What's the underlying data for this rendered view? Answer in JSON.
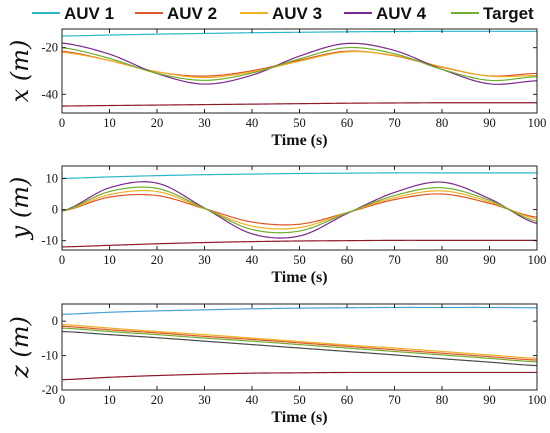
{
  "legend": [
    {
      "label": "AUV 1",
      "color": "#2ab7c9"
    },
    {
      "label": "AUV 2",
      "color": "#e0552a"
    },
    {
      "label": "AUV 3",
      "color": "#efb021"
    },
    {
      "label": "AUV 4",
      "color": "#7b2a8d"
    },
    {
      "label": "Target",
      "color": "#6fae2e"
    }
  ],
  "chart_data": [
    {
      "type": "line",
      "ylabel": "x (m)",
      "xlabel": "Time (s)",
      "xlim": [
        0,
        100
      ],
      "ylim": [
        -48,
        -12
      ],
      "xticks": [
        0,
        10,
        20,
        30,
        40,
        50,
        60,
        70,
        80,
        90,
        100
      ],
      "yticks": [
        -20,
        -40
      ],
      "grid": false,
      "x": [
        0,
        10,
        20,
        30,
        40,
        50,
        60,
        70,
        80,
        90,
        100
      ],
      "series": [
        {
          "name": "AUV 1",
          "color": "#2ab7c9",
          "values": [
            -15.0,
            -14.6,
            -14.2,
            -13.9,
            -13.6,
            -13.4,
            -13.2,
            -13.1,
            -13.0,
            -13.0,
            -13.0
          ]
        },
        {
          "name": "AUV 2",
          "color": "#e0552a",
          "values": [
            -21.5,
            -25.5,
            -30.4,
            -32.2,
            -29.9,
            -25.4,
            -21.5,
            -23.5,
            -28.4,
            -32.1,
            -31.0
          ]
        },
        {
          "name": "AUV 3",
          "color": "#efb021",
          "values": [
            -22.0,
            -25.5,
            -30.3,
            -32.8,
            -30.4,
            -25.8,
            -21.8,
            -23.3,
            -28.2,
            -32.2,
            -31.9
          ]
        },
        {
          "name": "AUV 4",
          "color": "#7b2a8d",
          "values": [
            -18.0,
            -22.8,
            -31.1,
            -35.6,
            -31.8,
            -23.6,
            -18.2,
            -21.2,
            -29.3,
            -35.5,
            -34.2
          ]
        },
        {
          "name": "Target",
          "color": "#6fae2e",
          "values": [
            -20.0,
            -24.6,
            -31.0,
            -34.0,
            -30.9,
            -24.8,
            -20.0,
            -22.6,
            -29.3,
            -34.0,
            -32.4
          ]
        },
        {
          "name": "",
          "color": "#8e1a2d",
          "values": [
            -45.0,
            -44.8,
            -44.6,
            -44.4,
            -44.2,
            -44.0,
            -43.8,
            -43.7,
            -43.6,
            -43.6,
            -43.6
          ]
        }
      ]
    },
    {
      "type": "line",
      "ylabel": "y (m)",
      "xlabel": "Time (s)",
      "xlim": [
        0,
        100
      ],
      "ylim": [
        -13,
        14
      ],
      "xticks": [
        0,
        10,
        20,
        30,
        40,
        50,
        60,
        70,
        80,
        90,
        100
      ],
      "yticks": [
        10,
        0,
        -10
      ],
      "grid": false,
      "x": [
        0,
        10,
        20,
        30,
        40,
        50,
        60,
        70,
        80,
        90,
        100
      ],
      "series": [
        {
          "name": "AUV 1",
          "color": "#2ab7c9",
          "values": [
            10.0,
            10.5,
            10.9,
            11.2,
            11.4,
            11.6,
            11.7,
            11.8,
            11.8,
            11.8,
            11.8
          ]
        },
        {
          "name": "AUV 2",
          "color": "#e0552a",
          "values": [
            -0.5,
            4.0,
            4.5,
            0.3,
            -4.0,
            -4.7,
            -1.0,
            3.2,
            5.0,
            2.0,
            -2.5
          ]
        },
        {
          "name": "AUV 3",
          "color": "#efb021",
          "values": [
            -0.5,
            4.8,
            5.8,
            0.3,
            -5.3,
            -5.8,
            -1.0,
            3.8,
            6.0,
            2.5,
            -3.0
          ]
        },
        {
          "name": "AUV 4",
          "color": "#7b2a8d",
          "values": [
            -0.5,
            7.0,
            8.5,
            0.5,
            -7.8,
            -8.5,
            -1.3,
            5.5,
            8.8,
            3.5,
            -4.5
          ]
        },
        {
          "name": "Target",
          "color": "#6fae2e",
          "values": [
            -0.5,
            5.8,
            6.8,
            0.4,
            -6.4,
            -6.9,
            -1.1,
            4.5,
            7.0,
            3.0,
            -3.8
          ]
        },
        {
          "name": "",
          "color": "#8e1a2d",
          "values": [
            -12.0,
            -11.5,
            -11.0,
            -10.6,
            -10.3,
            -10.1,
            -10.0,
            -9.9,
            -9.9,
            -9.9,
            -9.9
          ]
        }
      ]
    },
    {
      "type": "line",
      "ylabel": "z (m)",
      "xlabel": "Time (s)",
      "xlim": [
        0,
        100
      ],
      "ylim": [
        -20,
        5
      ],
      "xticks": [
        0,
        10,
        20,
        30,
        40,
        50,
        60,
        70,
        80,
        90,
        100
      ],
      "yticks": [
        0,
        -10,
        -20
      ],
      "grid": false,
      "x": [
        0,
        10,
        20,
        30,
        40,
        50,
        60,
        70,
        80,
        90,
        100
      ],
      "series": [
        {
          "name": "AUV 1",
          "color": "#4aa0d8",
          "values": [
            2.0,
            2.6,
            3.0,
            3.3,
            3.6,
            3.8,
            3.9,
            4.0,
            4.0,
            4.0,
            3.9
          ]
        },
        {
          "name": "AUV 2",
          "color": "#e0552a",
          "values": [
            -1.5,
            -2.5,
            -3.4,
            -4.4,
            -5.3,
            -6.3,
            -7.3,
            -8.3,
            -9.3,
            -10.3,
            -11.3
          ]
        },
        {
          "name": "AUV 3",
          "color": "#efb021",
          "values": [
            -1.0,
            -2.0,
            -3.0,
            -3.9,
            -4.9,
            -5.9,
            -6.9,
            -7.8,
            -8.8,
            -9.8,
            -10.8
          ]
        },
        {
          "name": "AUV 4",
          "color": "#4b4b4b",
          "values": [
            -3.0,
            -3.9,
            -4.8,
            -5.8,
            -6.8,
            -7.8,
            -8.8,
            -9.8,
            -10.9,
            -11.9,
            -12.9
          ]
        },
        {
          "name": "Target",
          "color": "#6fae2e",
          "values": [
            -2.0,
            -3.0,
            -3.9,
            -4.9,
            -5.8,
            -6.8,
            -7.8,
            -8.8,
            -9.8,
            -10.8,
            -11.8
          ]
        },
        {
          "name": "",
          "color": "#8e1a2d",
          "values": [
            -17.0,
            -16.3,
            -15.8,
            -15.4,
            -15.1,
            -15.0,
            -14.9,
            -14.9,
            -14.9,
            -14.9,
            -14.9
          ]
        }
      ]
    }
  ]
}
